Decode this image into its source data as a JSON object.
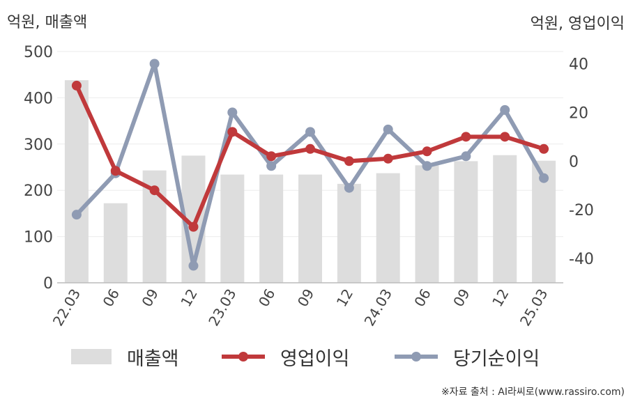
{
  "left_axis_unit": "억원, 매출액",
  "right_axis_unit": "억원, 영업이익",
  "source": "※자료 출처 : AI라씨로(www.rassiro.com)",
  "chart_data": {
    "type": "bar",
    "categories": [
      "22.03",
      "06",
      "09",
      "12",
      "23.03",
      "06",
      "09",
      "12",
      "24.03",
      "06",
      "09",
      "12",
      "25.03"
    ],
    "series": [
      {
        "name": "매출액",
        "type": "bar",
        "axis": "left",
        "color": "#dddddd",
        "values": [
          438,
          172,
          243,
          275,
          234,
          234,
          234,
          214,
          237,
          254,
          263,
          276,
          264
        ]
      },
      {
        "name": "영업이익",
        "type": "line",
        "axis": "right",
        "color": "#c0393b",
        "values": [
          31,
          -4,
          -12,
          -27,
          12,
          2,
          5,
          0,
          1,
          4,
          10,
          10,
          5
        ]
      },
      {
        "name": "당기순이익",
        "type": "line",
        "axis": "right",
        "color": "#8f9bb3",
        "values": [
          -22,
          -5,
          40,
          -43,
          20,
          -2,
          12,
          -11,
          13,
          -2,
          2,
          21,
          -7
        ]
      }
    ],
    "y_left": {
      "range": [
        0,
        500
      ],
      "ticks": [
        "0",
        "100",
        "200",
        "300",
        "400",
        "500"
      ]
    },
    "y_right": {
      "range": [
        -50,
        45
      ],
      "ticks": [
        "-40",
        "-20",
        "0",
        "20",
        "40"
      ]
    },
    "grid": true,
    "legend_position": "bottom"
  }
}
